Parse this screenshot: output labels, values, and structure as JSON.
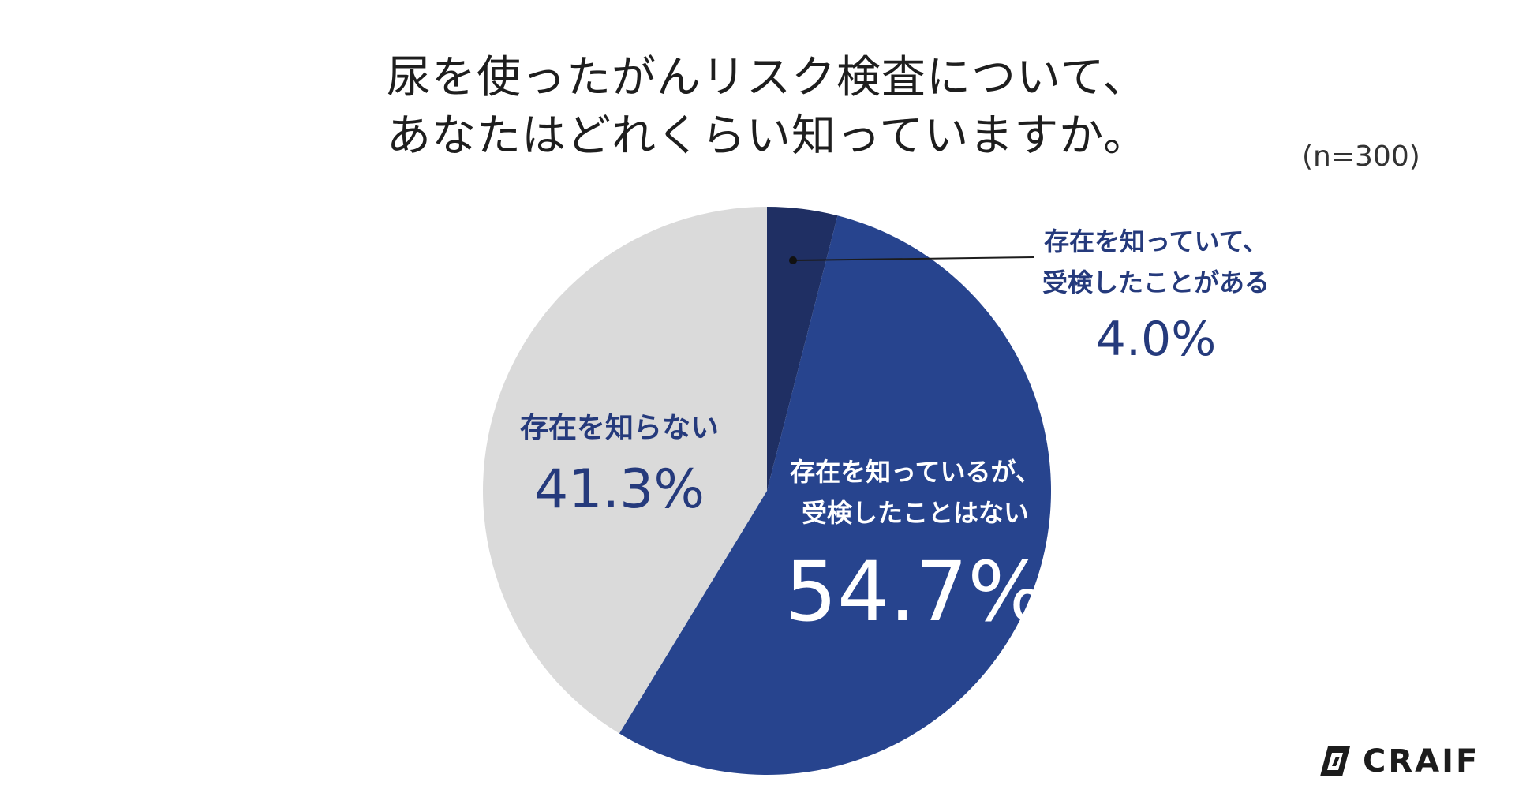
{
  "title_line1": "尿を使ったがんリスク検査について、",
  "title_line2": "あなたはどれくらい知っていますか。",
  "sample_size": "(n=300)",
  "brand": "CRAIF",
  "chart_data": {
    "type": "pie",
    "slices": [
      {
        "label_line1": "存在を知っていて、",
        "label_line2": "受検したことがある",
        "value": 4.0,
        "value_label": "4.0%",
        "color": "#1f2f63"
      },
      {
        "label_line1": "存在を知っているが、",
        "label_line2": "受検したことはない",
        "value": 54.7,
        "value_label": "54.7%",
        "color": "#27448e"
      },
      {
        "label_line1": "存在を知らない",
        "label_line2": "",
        "value": 41.3,
        "value_label": "41.3%",
        "color": "#dadada"
      }
    ]
  }
}
